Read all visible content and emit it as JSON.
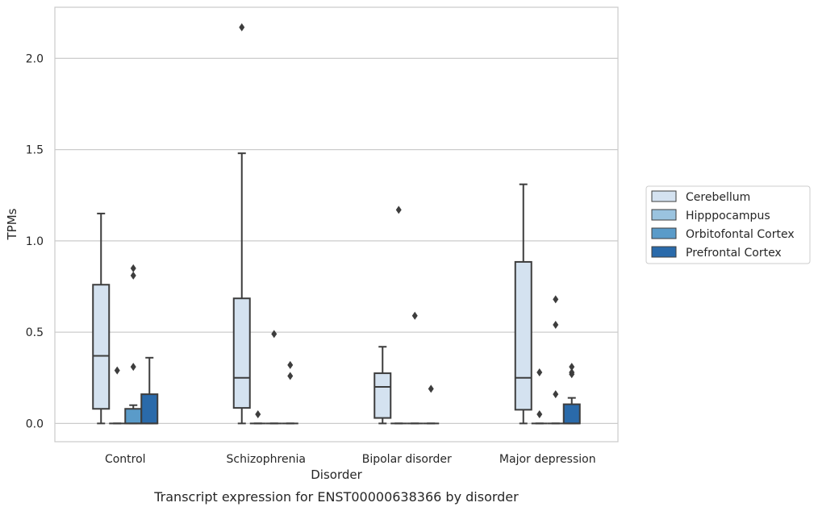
{
  "chart_data": {
    "type": "box",
    "caption": "Transcript expression for ENST00000638366 by disorder",
    "xlabel": "Disorder",
    "ylabel": "TPMs",
    "ylim": [
      -0.1,
      2.28
    ],
    "yticks": [
      0.0,
      0.5,
      1.0,
      1.5,
      2.0
    ],
    "ytick_labels": [
      "0.0",
      "0.5",
      "1.0",
      "1.5",
      "2.0"
    ],
    "grid": true,
    "legend_position": "right",
    "categories": [
      "Control",
      "Schizophrenia",
      "Bipolar disorder",
      "Major depression"
    ],
    "series": [
      {
        "name": "Cerebellum",
        "color": "#d4e2f0",
        "boxes": [
          {
            "whisker_low": 0.0,
            "q1": 0.08,
            "median": 0.37,
            "q3": 0.76,
            "whisker_high": 1.15,
            "outliers": []
          },
          {
            "whisker_low": 0.0,
            "q1": 0.085,
            "median": 0.25,
            "q3": 0.685,
            "whisker_high": 1.48,
            "outliers": [
              2.17
            ]
          },
          {
            "whisker_low": 0.0,
            "q1": 0.03,
            "median": 0.2,
            "q3": 0.275,
            "whisker_high": 0.42,
            "outliers": []
          },
          {
            "whisker_low": 0.0,
            "q1": 0.075,
            "median": 0.25,
            "q3": 0.885,
            "whisker_high": 1.31,
            "outliers": []
          }
        ]
      },
      {
        "name": "Hipppocampus",
        "color": "#9ac3df",
        "boxes": [
          {
            "whisker_low": 0.0,
            "q1": 0.0,
            "median": 0.0,
            "q3": 0.0,
            "whisker_high": 0.0,
            "outliers": [
              0.29
            ]
          },
          {
            "whisker_low": 0.0,
            "q1": 0.0,
            "median": 0.0,
            "q3": 0.0,
            "whisker_high": 0.0,
            "outliers": [
              0.05
            ]
          },
          {
            "whisker_low": 0.0,
            "q1": 0.0,
            "median": 0.0,
            "q3": 0.0,
            "whisker_high": 0.0,
            "outliers": [
              1.17
            ]
          },
          {
            "whisker_low": 0.0,
            "q1": 0.0,
            "median": 0.0,
            "q3": 0.0,
            "whisker_high": 0.0,
            "outliers": [
              0.28,
              0.05
            ]
          }
        ]
      },
      {
        "name": "Orbitofontal Cortex",
        "color": "#5a9bc9",
        "boxes": [
          {
            "whisker_low": 0.0,
            "q1": 0.0,
            "median": 0.0,
            "q3": 0.08,
            "whisker_high": 0.1,
            "outliers": [
              0.85,
              0.81,
              0.31
            ]
          },
          {
            "whisker_low": 0.0,
            "q1": 0.0,
            "median": 0.0,
            "q3": 0.0,
            "whisker_high": 0.0,
            "outliers": [
              0.49
            ]
          },
          {
            "whisker_low": 0.0,
            "q1": 0.0,
            "median": 0.0,
            "q3": 0.0,
            "whisker_high": 0.0,
            "outliers": [
              0.59
            ]
          },
          {
            "whisker_low": 0.0,
            "q1": 0.0,
            "median": 0.0,
            "q3": 0.0,
            "whisker_high": 0.0,
            "outliers": [
              0.68,
              0.54,
              0.16
            ]
          }
        ]
      },
      {
        "name": "Prefrontal Cortex",
        "color": "#2a6aaa",
        "boxes": [
          {
            "whisker_low": 0.0,
            "q1": 0.0,
            "median": 0.0,
            "q3": 0.16,
            "whisker_high": 0.36,
            "outliers": []
          },
          {
            "whisker_low": 0.0,
            "q1": 0.0,
            "median": 0.0,
            "q3": 0.0,
            "whisker_high": 0.0,
            "outliers": [
              0.32,
              0.26
            ]
          },
          {
            "whisker_low": 0.0,
            "q1": 0.0,
            "median": 0.0,
            "q3": 0.0,
            "whisker_high": 0.0,
            "outliers": [
              0.19
            ]
          },
          {
            "whisker_low": 0.0,
            "q1": 0.0,
            "median": 0.0,
            "q3": 0.105,
            "whisker_high": 0.14,
            "outliers": [
              0.31,
              0.28,
              0.27
            ]
          }
        ]
      }
    ]
  }
}
